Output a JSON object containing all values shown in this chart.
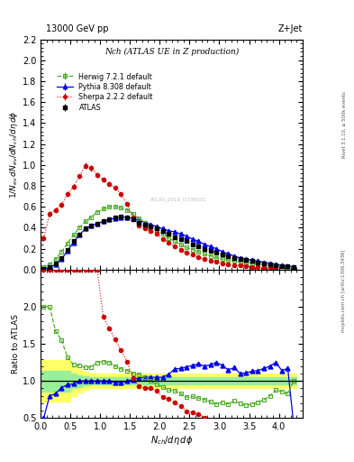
{
  "title_top": "13000 GeV pp",
  "title_right": "Z+Jet",
  "plot_title": "Nch (ATLAS UE in Z production)",
  "right_label1": "Rivet 3.1.10, ≥ 500k events",
  "right_label2": "mcplots.cern.ch [arXiv:1306.3436]",
  "watermark": "ATLAS_2019_I1736531",
  "ylim_main": [
    0.0,
    2.2
  ],
  "ylim_ratio": [
    0.5,
    2.5
  ],
  "xlim": [
    0.0,
    4.4
  ],
  "yticks_main": [
    0.0,
    0.2,
    0.4,
    0.6,
    0.8,
    1.0,
    1.2,
    1.4,
    1.6,
    1.8,
    2.0,
    2.2
  ],
  "yticks_ratio": [
    0.5,
    1.0,
    1.5,
    2.0
  ],
  "atlas_color": "#000000",
  "herwig_color": "#4dac26",
  "pythia_color": "#0000ee",
  "sherpa_color": "#cc0000",
  "band_yellow": "#ffff66",
  "band_green": "#99ee99",
  "atlas_x": [
    0.05,
    0.15,
    0.25,
    0.35,
    0.45,
    0.55,
    0.65,
    0.75,
    0.85,
    0.95,
    1.05,
    1.15,
    1.25,
    1.35,
    1.45,
    1.55,
    1.65,
    1.75,
    1.85,
    1.95,
    2.05,
    2.15,
    2.25,
    2.35,
    2.45,
    2.55,
    2.65,
    2.75,
    2.85,
    2.95,
    3.05,
    3.15,
    3.25,
    3.35,
    3.45,
    3.55,
    3.65,
    3.75,
    3.85,
    3.95,
    4.05,
    4.15,
    4.25
  ],
  "atlas_y": [
    0.01,
    0.025,
    0.06,
    0.11,
    0.19,
    0.27,
    0.33,
    0.39,
    0.42,
    0.44,
    0.46,
    0.48,
    0.5,
    0.51,
    0.5,
    0.48,
    0.45,
    0.43,
    0.41,
    0.39,
    0.37,
    0.34,
    0.31,
    0.29,
    0.27,
    0.24,
    0.22,
    0.2,
    0.18,
    0.16,
    0.14,
    0.13,
    0.11,
    0.1,
    0.09,
    0.08,
    0.07,
    0.06,
    0.05,
    0.04,
    0.035,
    0.03,
    0.02
  ],
  "atlas_yerr": [
    0.003,
    0.004,
    0.005,
    0.007,
    0.008,
    0.009,
    0.01,
    0.01,
    0.01,
    0.01,
    0.01,
    0.01,
    0.01,
    0.01,
    0.01,
    0.01,
    0.01,
    0.009,
    0.009,
    0.009,
    0.008,
    0.008,
    0.008,
    0.007,
    0.007,
    0.007,
    0.006,
    0.006,
    0.006,
    0.005,
    0.005,
    0.005,
    0.004,
    0.004,
    0.004,
    0.004,
    0.003,
    0.003,
    0.003,
    0.003,
    0.003,
    0.002,
    0.002
  ],
  "herwig_x": [
    0.05,
    0.15,
    0.25,
    0.35,
    0.45,
    0.55,
    0.65,
    0.75,
    0.85,
    0.95,
    1.05,
    1.15,
    1.25,
    1.35,
    1.45,
    1.55,
    1.65,
    1.75,
    1.85,
    1.95,
    2.05,
    2.15,
    2.25,
    2.35,
    2.45,
    2.55,
    2.65,
    2.75,
    2.85,
    2.95,
    3.05,
    3.15,
    3.25,
    3.35,
    3.45,
    3.55,
    3.65,
    3.75,
    3.85,
    3.95,
    4.05,
    4.15,
    4.25
  ],
  "herwig_y": [
    0.02,
    0.05,
    0.1,
    0.17,
    0.25,
    0.33,
    0.4,
    0.46,
    0.5,
    0.55,
    0.58,
    0.6,
    0.6,
    0.59,
    0.57,
    0.53,
    0.49,
    0.45,
    0.41,
    0.37,
    0.34,
    0.3,
    0.27,
    0.24,
    0.21,
    0.19,
    0.17,
    0.15,
    0.13,
    0.11,
    0.1,
    0.09,
    0.08,
    0.07,
    0.06,
    0.055,
    0.05,
    0.045,
    0.04,
    0.035,
    0.03,
    0.025,
    0.02
  ],
  "herwig_yerr": [
    0.004,
    0.005,
    0.007,
    0.008,
    0.009,
    0.01,
    0.01,
    0.01,
    0.01,
    0.01,
    0.01,
    0.01,
    0.01,
    0.01,
    0.01,
    0.01,
    0.009,
    0.009,
    0.009,
    0.008,
    0.008,
    0.007,
    0.007,
    0.006,
    0.006,
    0.005,
    0.005,
    0.005,
    0.004,
    0.004,
    0.004,
    0.004,
    0.003,
    0.003,
    0.003,
    0.003,
    0.003,
    0.003,
    0.003,
    0.002,
    0.002,
    0.002,
    0.002
  ],
  "pythia_x": [
    0.05,
    0.15,
    0.25,
    0.35,
    0.45,
    0.55,
    0.65,
    0.75,
    0.85,
    0.95,
    1.05,
    1.15,
    1.25,
    1.35,
    1.45,
    1.55,
    1.65,
    1.75,
    1.85,
    1.95,
    2.05,
    2.15,
    2.25,
    2.35,
    2.45,
    2.55,
    2.65,
    2.75,
    2.85,
    2.95,
    3.05,
    3.15,
    3.25,
    3.35,
    3.45,
    3.55,
    3.65,
    3.75,
    3.85,
    3.95,
    4.05,
    4.15,
    4.25
  ],
  "pythia_y": [
    0.005,
    0.02,
    0.05,
    0.1,
    0.18,
    0.26,
    0.33,
    0.39,
    0.42,
    0.44,
    0.46,
    0.48,
    0.49,
    0.5,
    0.5,
    0.49,
    0.47,
    0.45,
    0.43,
    0.41,
    0.39,
    0.37,
    0.36,
    0.34,
    0.32,
    0.29,
    0.27,
    0.24,
    0.22,
    0.2,
    0.17,
    0.15,
    0.13,
    0.11,
    0.1,
    0.09,
    0.08,
    0.07,
    0.06,
    0.05,
    0.04,
    0.035,
    0.025
  ],
  "pythia_yerr": [
    0.002,
    0.003,
    0.005,
    0.007,
    0.008,
    0.009,
    0.01,
    0.01,
    0.01,
    0.01,
    0.01,
    0.01,
    0.01,
    0.01,
    0.01,
    0.01,
    0.01,
    0.009,
    0.009,
    0.009,
    0.008,
    0.008,
    0.008,
    0.007,
    0.007,
    0.007,
    0.006,
    0.006,
    0.006,
    0.005,
    0.005,
    0.005,
    0.005,
    0.004,
    0.004,
    0.004,
    0.003,
    0.003,
    0.003,
    0.003,
    0.003,
    0.002,
    0.002
  ],
  "sherpa_x": [
    0.05,
    0.15,
    0.25,
    0.35,
    0.45,
    0.55,
    0.65,
    0.75,
    0.85,
    0.95,
    1.05,
    1.15,
    1.25,
    1.35,
    1.45,
    1.55,
    1.65,
    1.75,
    1.85,
    1.95,
    2.05,
    2.15,
    2.25,
    2.35,
    2.45,
    2.55,
    2.65,
    2.75,
    2.85,
    2.95,
    3.05,
    3.15,
    3.25,
    3.35,
    3.45,
    3.55,
    3.65,
    3.75,
    3.85,
    3.95
  ],
  "sherpa_y": [
    0.3,
    0.53,
    0.57,
    0.62,
    0.72,
    0.79,
    0.89,
    0.99,
    0.97,
    0.9,
    0.86,
    0.82,
    0.78,
    0.72,
    0.63,
    0.5,
    0.42,
    0.39,
    0.37,
    0.34,
    0.29,
    0.26,
    0.22,
    0.19,
    0.16,
    0.14,
    0.12,
    0.1,
    0.085,
    0.073,
    0.062,
    0.053,
    0.044,
    0.037,
    0.031,
    0.026,
    0.022,
    0.018,
    0.015,
    0.012
  ],
  "sherpa_yerr": [
    0.025,
    0.025,
    0.025,
    0.025,
    0.025,
    0.025,
    0.025,
    0.03,
    0.03,
    0.025,
    0.022,
    0.02,
    0.02,
    0.02,
    0.018,
    0.016,
    0.014,
    0.013,
    0.012,
    0.011,
    0.01,
    0.009,
    0.008,
    0.007,
    0.007,
    0.006,
    0.005,
    0.005,
    0.004,
    0.004,
    0.003,
    0.003,
    0.003,
    0.003,
    0.002,
    0.002,
    0.002,
    0.002,
    0.002,
    0.002
  ],
  "ratio_herwig_x": [
    0.05,
    0.15,
    0.25,
    0.35,
    0.45,
    0.55,
    0.65,
    0.75,
    0.85,
    0.95,
    1.05,
    1.15,
    1.25,
    1.35,
    1.45,
    1.55,
    1.65,
    1.75,
    1.85,
    1.95,
    2.05,
    2.15,
    2.25,
    2.35,
    2.45,
    2.55,
    2.65,
    2.75,
    2.85,
    2.95,
    3.05,
    3.15,
    3.25,
    3.35,
    3.45,
    3.55,
    3.65,
    3.75,
    3.85,
    3.95,
    4.05,
    4.15,
    4.25
  ],
  "ratio_herwig_y": [
    2.0,
    2.0,
    1.67,
    1.55,
    1.32,
    1.22,
    1.21,
    1.18,
    1.19,
    1.25,
    1.26,
    1.25,
    1.2,
    1.16,
    1.14,
    1.1,
    1.09,
    1.05,
    1.0,
    0.95,
    0.92,
    0.88,
    0.87,
    0.83,
    0.78,
    0.79,
    0.77,
    0.75,
    0.72,
    0.69,
    0.71,
    0.69,
    0.73,
    0.7,
    0.67,
    0.69,
    0.71,
    0.75,
    0.8,
    0.875,
    0.86,
    0.83,
    1.0
  ],
  "ratio_pythia_x": [
    0.05,
    0.15,
    0.25,
    0.35,
    0.45,
    0.55,
    0.65,
    0.75,
    0.85,
    0.95,
    1.05,
    1.15,
    1.25,
    1.35,
    1.45,
    1.55,
    1.65,
    1.75,
    1.85,
    1.95,
    2.05,
    2.15,
    2.25,
    2.35,
    2.45,
    2.55,
    2.65,
    2.75,
    2.85,
    2.95,
    3.05,
    3.15,
    3.25,
    3.35,
    3.45,
    3.55,
    3.65,
    3.75,
    3.85,
    3.95,
    4.05,
    4.15,
    4.25
  ],
  "ratio_pythia_y": [
    0.5,
    0.8,
    0.83,
    0.91,
    0.95,
    0.96,
    1.0,
    1.0,
    1.0,
    1.0,
    1.0,
    1.0,
    0.98,
    0.98,
    1.0,
    1.02,
    1.04,
    1.05,
    1.05,
    1.05,
    1.05,
    1.09,
    1.16,
    1.17,
    1.19,
    1.21,
    1.23,
    1.2,
    1.22,
    1.25,
    1.21,
    1.15,
    1.18,
    1.1,
    1.11,
    1.13,
    1.14,
    1.17,
    1.2,
    1.25,
    1.14,
    1.17,
    0.4
  ],
  "ratio_sherpa_x": [
    0.05,
    0.15,
    0.25,
    0.35,
    0.45,
    0.55,
    0.65,
    0.75,
    0.85,
    0.95,
    1.05,
    1.15,
    1.25,
    1.35,
    1.45,
    1.55,
    1.65,
    1.75,
    1.85,
    1.95,
    2.05,
    2.15,
    2.25,
    2.35,
    2.45,
    2.55,
    2.65,
    2.75,
    2.85,
    2.95,
    3.05,
    3.15,
    3.25,
    3.35,
    3.45,
    3.55,
    3.65,
    3.75,
    3.85,
    3.95
  ],
  "ratio_sherpa_y": [
    2.5,
    2.5,
    2.5,
    2.5,
    2.5,
    2.5,
    2.5,
    2.5,
    2.5,
    2.5,
    1.87,
    1.71,
    1.56,
    1.41,
    1.26,
    1.04,
    0.93,
    0.91,
    0.9,
    0.87,
    0.78,
    0.76,
    0.71,
    0.66,
    0.59,
    0.58,
    0.55,
    0.5,
    0.47,
    0.46,
    0.44,
    0.41,
    0.4,
    0.37,
    0.34,
    0.33,
    0.31,
    0.3,
    0.3,
    0.3
  ],
  "ratio_sherpa_clip_below": [
    0.05,
    0.15,
    0.25,
    0.35,
    0.45,
    0.55,
    0.65,
    0.75,
    0.85,
    0.95
  ],
  "atlas_band_x": [
    0.05,
    0.15,
    0.25,
    0.35,
    0.45,
    0.55,
    0.65,
    0.75,
    0.85,
    0.95,
    1.05,
    1.15,
    1.25,
    1.35,
    1.45,
    1.55,
    1.65,
    1.75,
    1.85,
    1.95,
    2.05,
    2.15,
    2.25,
    2.35,
    2.45,
    2.55,
    2.65,
    2.75,
    2.85,
    2.95,
    3.05,
    3.15,
    3.25,
    3.35,
    3.45,
    3.55,
    3.65,
    3.75,
    3.85,
    3.95,
    4.05,
    4.15,
    4.25
  ],
  "atlas_band_5pct_lo": [
    0.86,
    0.86,
    0.86,
    0.86,
    0.86,
    0.9,
    0.92,
    0.94,
    0.95,
    0.95,
    0.95,
    0.95,
    0.95,
    0.95,
    0.95,
    0.95,
    0.95,
    0.95,
    0.95,
    0.95,
    0.95,
    0.95,
    0.95,
    0.95,
    0.95,
    0.95,
    0.95,
    0.95,
    0.95,
    0.95,
    0.95,
    0.95,
    0.95,
    0.95,
    0.95,
    0.95,
    0.95,
    0.95,
    0.95,
    0.95,
    0.95,
    0.95,
    0.95
  ],
  "atlas_band_5pct_hi": [
    1.14,
    1.14,
    1.14,
    1.14,
    1.14,
    1.1,
    1.08,
    1.06,
    1.05,
    1.05,
    1.05,
    1.05,
    1.05,
    1.05,
    1.05,
    1.05,
    1.05,
    1.05,
    1.05,
    1.05,
    1.05,
    1.05,
    1.05,
    1.05,
    1.05,
    1.05,
    1.05,
    1.05,
    1.05,
    1.05,
    1.05,
    1.05,
    1.05,
    1.05,
    1.05,
    1.05,
    1.05,
    1.05,
    1.05,
    1.05,
    1.05,
    1.05,
    1.05
  ],
  "atlas_band_10pct_lo": [
    0.72,
    0.72,
    0.72,
    0.72,
    0.72,
    0.8,
    0.84,
    0.88,
    0.9,
    0.9,
    0.9,
    0.9,
    0.9,
    0.9,
    0.9,
    0.9,
    0.9,
    0.9,
    0.9,
    0.9,
    0.9,
    0.9,
    0.9,
    0.9,
    0.9,
    0.9,
    0.9,
    0.9,
    0.9,
    0.9,
    0.9,
    0.9,
    0.9,
    0.9,
    0.9,
    0.9,
    0.9,
    0.9,
    0.9,
    0.9,
    0.9,
    0.9,
    0.9
  ],
  "atlas_band_10pct_hi": [
    1.28,
    1.28,
    1.28,
    1.28,
    1.28,
    1.2,
    1.16,
    1.12,
    1.1,
    1.1,
    1.1,
    1.1,
    1.1,
    1.1,
    1.1,
    1.1,
    1.1,
    1.1,
    1.1,
    1.1,
    1.1,
    1.1,
    1.1,
    1.1,
    1.1,
    1.1,
    1.1,
    1.1,
    1.1,
    1.1,
    1.1,
    1.1,
    1.1,
    1.1,
    1.1,
    1.1,
    1.1,
    1.1,
    1.1,
    1.1,
    1.1,
    1.1,
    1.1
  ]
}
